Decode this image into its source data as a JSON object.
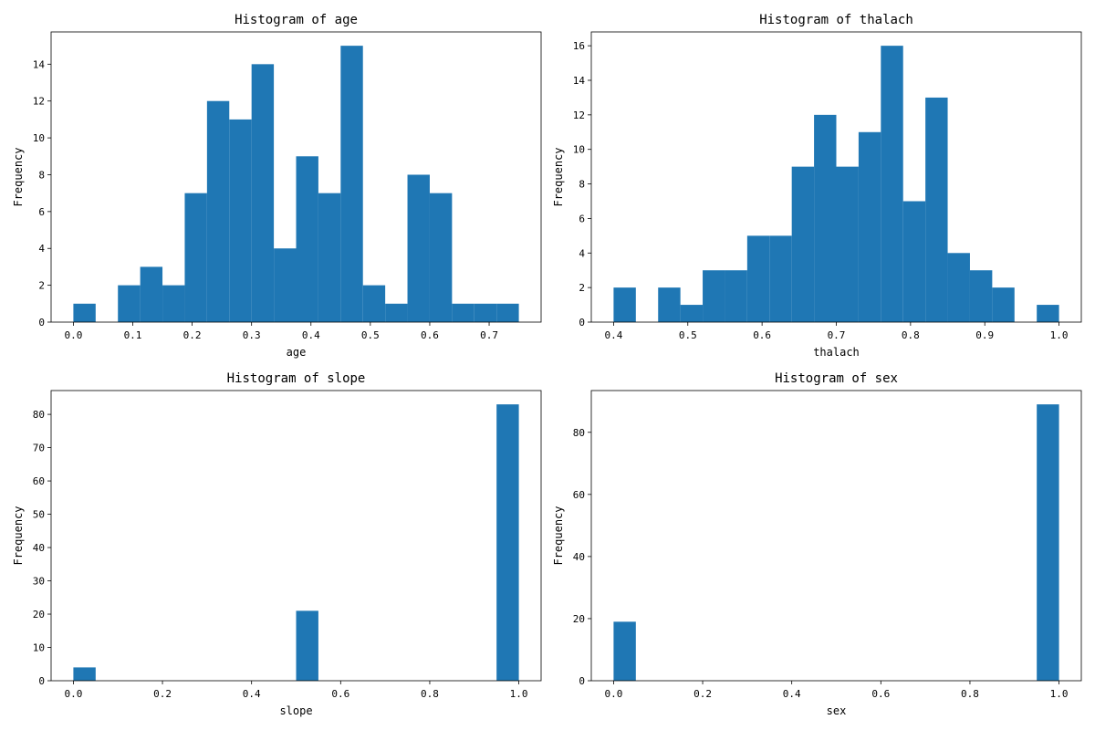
{
  "chart_data": [
    {
      "type": "bar",
      "title": "Histogram of age",
      "xlabel": "age",
      "ylabel": "Frequency",
      "xlim": [
        -0.0375,
        0.7875
      ],
      "ylim": [
        0,
        15.75
      ],
      "bin_start": 0.0,
      "bin_width": 0.0375,
      "values": [
        1,
        0,
        2,
        3,
        2,
        7,
        12,
        11,
        14,
        4,
        9,
        7,
        15,
        2,
        1,
        8,
        7,
        1,
        1,
        1
      ],
      "xticks": [
        "0.0",
        "0.1",
        "0.2",
        "0.3",
        "0.4",
        "0.5",
        "0.6",
        "0.7"
      ],
      "yticks": [
        "0",
        "2",
        "4",
        "6",
        "8",
        "10",
        "12",
        "14"
      ]
    },
    {
      "type": "bar",
      "title": "Histogram of thalach",
      "xlabel": "thalach",
      "ylabel": "Frequency",
      "xlim": [
        0.37,
        1.03
      ],
      "ylim": [
        0,
        16.8
      ],
      "bin_start": 0.4,
      "bin_width": 0.03,
      "values": [
        2,
        0,
        2,
        1,
        3,
        3,
        5,
        5,
        9,
        12,
        9,
        11,
        16,
        7,
        13,
        4,
        3,
        2,
        0,
        1
      ],
      "xticks": [
        "0.4",
        "0.5",
        "0.6",
        "0.7",
        "0.8",
        "0.9",
        "1.0"
      ],
      "yticks": [
        "0",
        "2",
        "4",
        "6",
        "8",
        "10",
        "12",
        "14",
        "16"
      ]
    },
    {
      "type": "bar",
      "title": "Histogram of slope",
      "xlabel": "slope",
      "ylabel": "Frequency",
      "xlim": [
        -0.05,
        1.05
      ],
      "ylim": [
        0,
        87.15
      ],
      "bin_start": 0.0,
      "bin_width": 0.05,
      "values": [
        4,
        0,
        0,
        0,
        0,
        0,
        0,
        0,
        0,
        0,
        21,
        0,
        0,
        0,
        0,
        0,
        0,
        0,
        0,
        83
      ],
      "xticks": [
        "0.0",
        "0.2",
        "0.4",
        "0.6",
        "0.8",
        "1.0"
      ],
      "yticks": [
        "0",
        "10",
        "20",
        "30",
        "40",
        "50",
        "60",
        "70",
        "80"
      ]
    },
    {
      "type": "bar",
      "title": "Histogram of sex",
      "xlabel": "sex",
      "ylabel": "Frequency",
      "xlim": [
        -0.05,
        1.05
      ],
      "ylim": [
        0,
        93.45
      ],
      "bin_start": 0.0,
      "bin_width": 0.05,
      "values": [
        19,
        0,
        0,
        0,
        0,
        0,
        0,
        0,
        0,
        0,
        0,
        0,
        0,
        0,
        0,
        0,
        0,
        0,
        0,
        89
      ],
      "xticks": [
        "0.0",
        "0.2",
        "0.4",
        "0.6",
        "0.8",
        "1.0"
      ],
      "yticks": [
        "0",
        "20",
        "40",
        "60",
        "80"
      ]
    }
  ],
  "colors": {
    "bar": "#1f77b4",
    "axes": "#000000"
  }
}
